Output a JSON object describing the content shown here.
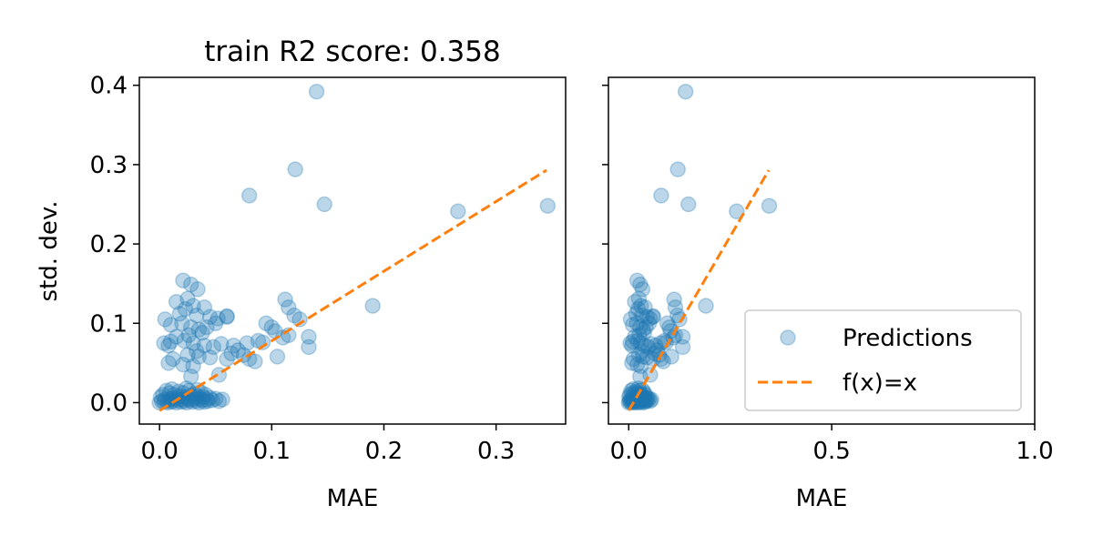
{
  "chart_data": [
    {
      "type": "scatter",
      "title": "train R2 score: 0.358",
      "xlabel": "MAE",
      "ylabel": "std. dev.",
      "xlim": [
        -0.018,
        0.362
      ],
      "ylim": [
        -0.027,
        0.41
      ],
      "xticks": [
        0.0,
        0.1,
        0.2,
        0.3
      ],
      "xtick_labels": [
        "0.0",
        "0.1",
        "0.2",
        "0.3"
      ],
      "yticks": [
        0.0,
        0.1,
        0.2,
        0.3,
        0.4
      ],
      "ytick_labels": [
        "0.0",
        "0.1",
        "0.2",
        "0.3",
        "0.4"
      ],
      "grid": false,
      "reference_line": {
        "name": "f(x)=x",
        "x": [
          0.0,
          0.345
        ],
        "y": [
          -0.01,
          0.293
        ]
      },
      "series": [
        {
          "name": "Predictions",
          "color": "#1f77b4",
          "points": [
            [
              0.14,
              0.392
            ],
            [
              0.121,
              0.294
            ],
            [
              0.08,
              0.261
            ],
            [
              0.147,
              0.25
            ],
            [
              0.266,
              0.241
            ],
            [
              0.346,
              0.248
            ],
            [
              0.19,
              0.122
            ],
            [
              0.021,
              0.154
            ],
            [
              0.028,
              0.149
            ],
            [
              0.034,
              0.143
            ],
            [
              0.015,
              0.127
            ],
            [
              0.025,
              0.131
            ],
            [
              0.03,
              0.122
            ],
            [
              0.04,
              0.12
            ],
            [
              0.018,
              0.112
            ],
            [
              0.023,
              0.118
            ],
            [
              0.033,
              0.11
            ],
            [
              0.045,
              0.108
            ],
            [
              0.052,
              0.106
            ],
            [
              0.06,
              0.109
            ],
            [
              0.005,
              0.105
            ],
            [
              0.01,
              0.098
            ],
            [
              0.02,
              0.1
            ],
            [
              0.028,
              0.095
            ],
            [
              0.035,
              0.092
            ],
            [
              0.042,
              0.095
            ],
            [
              0.05,
              0.1
            ],
            [
              0.038,
              0.088
            ],
            [
              0.026,
              0.085
            ],
            [
              0.015,
              0.083
            ],
            [
              0.022,
              0.078
            ],
            [
              0.03,
              0.075
            ],
            [
              0.01,
              0.077
            ],
            [
              0.004,
              0.075
            ],
            [
              0.008,
              0.072
            ],
            [
              0.04,
              0.072
            ],
            [
              0.048,
              0.07
            ],
            [
              0.055,
              0.074
            ],
            [
              0.033,
              0.065
            ],
            [
              0.025,
              0.06
            ],
            [
              0.035,
              0.058
            ],
            [
              0.045,
              0.057
            ],
            [
              0.012,
              0.055
            ],
            [
              0.008,
              0.05
            ],
            [
              0.021,
              0.048
            ],
            [
              0.03,
              0.046
            ],
            [
              0.028,
              0.033
            ],
            [
              0.053,
              0.035
            ],
            [
              0.06,
              0.055
            ],
            [
              0.064,
              0.062
            ],
            [
              0.066,
              0.072
            ],
            [
              0.07,
              0.066
            ],
            [
              0.075,
              0.06
            ],
            [
              0.08,
              0.055
            ],
            [
              0.085,
              0.052
            ],
            [
              0.078,
              0.075
            ],
            [
              0.088,
              0.078
            ],
            [
              0.092,
              0.076
            ],
            [
              0.095,
              0.1
            ],
            [
              0.1,
              0.095
            ],
            [
              0.103,
              0.09
            ],
            [
              0.11,
              0.082
            ],
            [
              0.105,
              0.058
            ],
            [
              0.115,
              0.085
            ],
            [
              0.112,
              0.13
            ],
            [
              0.115,
              0.12
            ],
            [
              0.12,
              0.11
            ],
            [
              0.125,
              0.105
            ],
            [
              0.133,
              0.083
            ],
            [
              0.133,
              0.07
            ],
            [
              0.06,
              0.108
            ],
            [
              0.0,
              0.0
            ],
            [
              0.002,
              0.002
            ],
            [
              0.004,
              0.001
            ],
            [
              0.005,
              0.004
            ],
            [
              0.007,
              0.0
            ],
            [
              0.008,
              0.003
            ],
            [
              0.01,
              0.001
            ],
            [
              0.011,
              0.005
            ],
            [
              0.012,
              0.002
            ],
            [
              0.014,
              0.006
            ],
            [
              0.015,
              0.0
            ],
            [
              0.016,
              0.003
            ],
            [
              0.018,
              0.008
            ],
            [
              0.019,
              0.001
            ],
            [
              0.02,
              0.004
            ],
            [
              0.022,
              0.002
            ],
            [
              0.023,
              0.007
            ],
            [
              0.024,
              0.0
            ],
            [
              0.025,
              0.005
            ],
            [
              0.027,
              0.003
            ],
            [
              0.028,
              0.009
            ],
            [
              0.029,
              0.001
            ],
            [
              0.03,
              0.004
            ],
            [
              0.032,
              0.006
            ],
            [
              0.033,
              0.002
            ],
            [
              0.034,
              0.008
            ],
            [
              0.035,
              0.0
            ],
            [
              0.036,
              0.005
            ],
            [
              0.038,
              0.003
            ],
            [
              0.039,
              0.007
            ],
            [
              0.04,
              0.001
            ],
            [
              0.042,
              0.004
            ],
            [
              0.043,
              0.002
            ],
            [
              0.045,
              0.006
            ],
            [
              0.047,
              0.003
            ],
            [
              0.05,
              0.005
            ],
            [
              0.053,
              0.002
            ],
            [
              0.056,
              0.004
            ],
            [
              0.003,
              0.01
            ],
            [
              0.009,
              0.012
            ],
            [
              0.013,
              0.01
            ],
            [
              0.017,
              0.014
            ],
            [
              0.021,
              0.012
            ],
            [
              0.026,
              0.015
            ],
            [
              0.031,
              0.011
            ],
            [
              0.037,
              0.013
            ],
            [
              0.041,
              0.01
            ],
            [
              0.006,
              0.015
            ],
            [
              0.001,
              0.007
            ],
            [
              0.011,
              0.017
            ],
            [
              0.024,
              0.018
            ],
            [
              0.034,
              0.016
            ]
          ]
        }
      ]
    },
    {
      "type": "scatter",
      "title": "",
      "xlabel": "MAE",
      "ylabel": "",
      "xlim": [
        -0.05,
        1.0
      ],
      "ylim": [
        -0.027,
        0.41
      ],
      "xticks": [
        0.0,
        0.5,
        1.0
      ],
      "xtick_labels": [
        "0.0",
        "0.5",
        "1.0"
      ],
      "yticks": [
        0.0,
        0.1,
        0.2,
        0.3,
        0.4
      ],
      "grid": false,
      "legend": {
        "placement": "lower-right",
        "entries": [
          {
            "label": "Predictions",
            "kind": "marker",
            "color": "#1f77b4"
          },
          {
            "label": "f(x)=x",
            "kind": "dashed-line",
            "color": "#ff7f0e"
          }
        ]
      },
      "reference_line": {
        "name": "f(x)=x",
        "x": [
          0.0,
          0.345
        ],
        "y": [
          -0.01,
          0.293
        ]
      },
      "series_ref": 0
    }
  ]
}
